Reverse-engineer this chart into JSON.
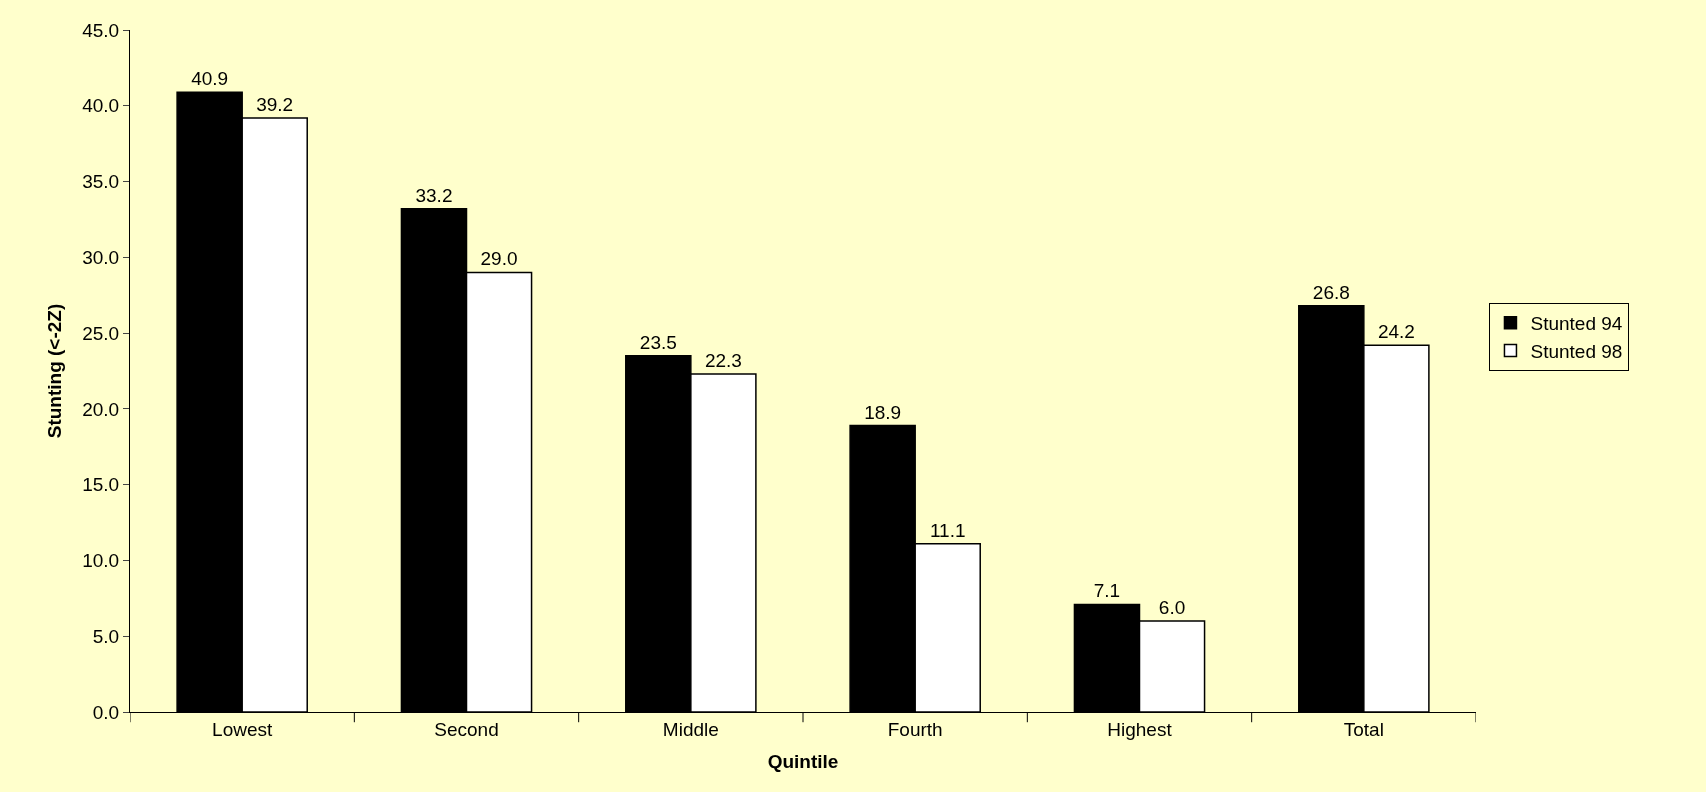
{
  "chart_data": {
    "type": "bar",
    "xlabel": "Quintile",
    "ylabel": "Stunting (<-2Z)",
    "categories": [
      "Lowest",
      "Second",
      "Middle",
      "Fourth",
      "Highest",
      "Total"
    ],
    "series": [
      {
        "name": "Stunted 94",
        "color": "#000000",
        "values": [
          40.9,
          33.2,
          23.5,
          18.9,
          7.1,
          26.8
        ],
        "value_labels": [
          "40.9",
          "33.2",
          "23.5",
          "18.9",
          "7.1",
          "26.8"
        ]
      },
      {
        "name": "Stunted 98",
        "color": "#ffffff",
        "values": [
          39.2,
          29.0,
          22.3,
          11.1,
          6.0,
          24.2
        ],
        "value_labels": [
          "39.2",
          "29.0",
          "22.3",
          "11.1",
          "6.0",
          "24.2"
        ]
      }
    ],
    "ylim": [
      0,
      45
    ],
    "yticks": [
      {
        "value": 0,
        "label": "0.0"
      },
      {
        "value": 5,
        "label": "5.0"
      },
      {
        "value": 10,
        "label": "10.0"
      },
      {
        "value": 15,
        "label": "15.0"
      },
      {
        "value": 20,
        "label": "20.0"
      },
      {
        "value": 25,
        "label": "25.0"
      },
      {
        "value": 30,
        "label": "30.0"
      },
      {
        "value": 35,
        "label": "35.0"
      },
      {
        "value": 40,
        "label": "40.0"
      },
      {
        "value": 45,
        "label": "45.0"
      }
    ],
    "grid": false,
    "legend": "right"
  }
}
